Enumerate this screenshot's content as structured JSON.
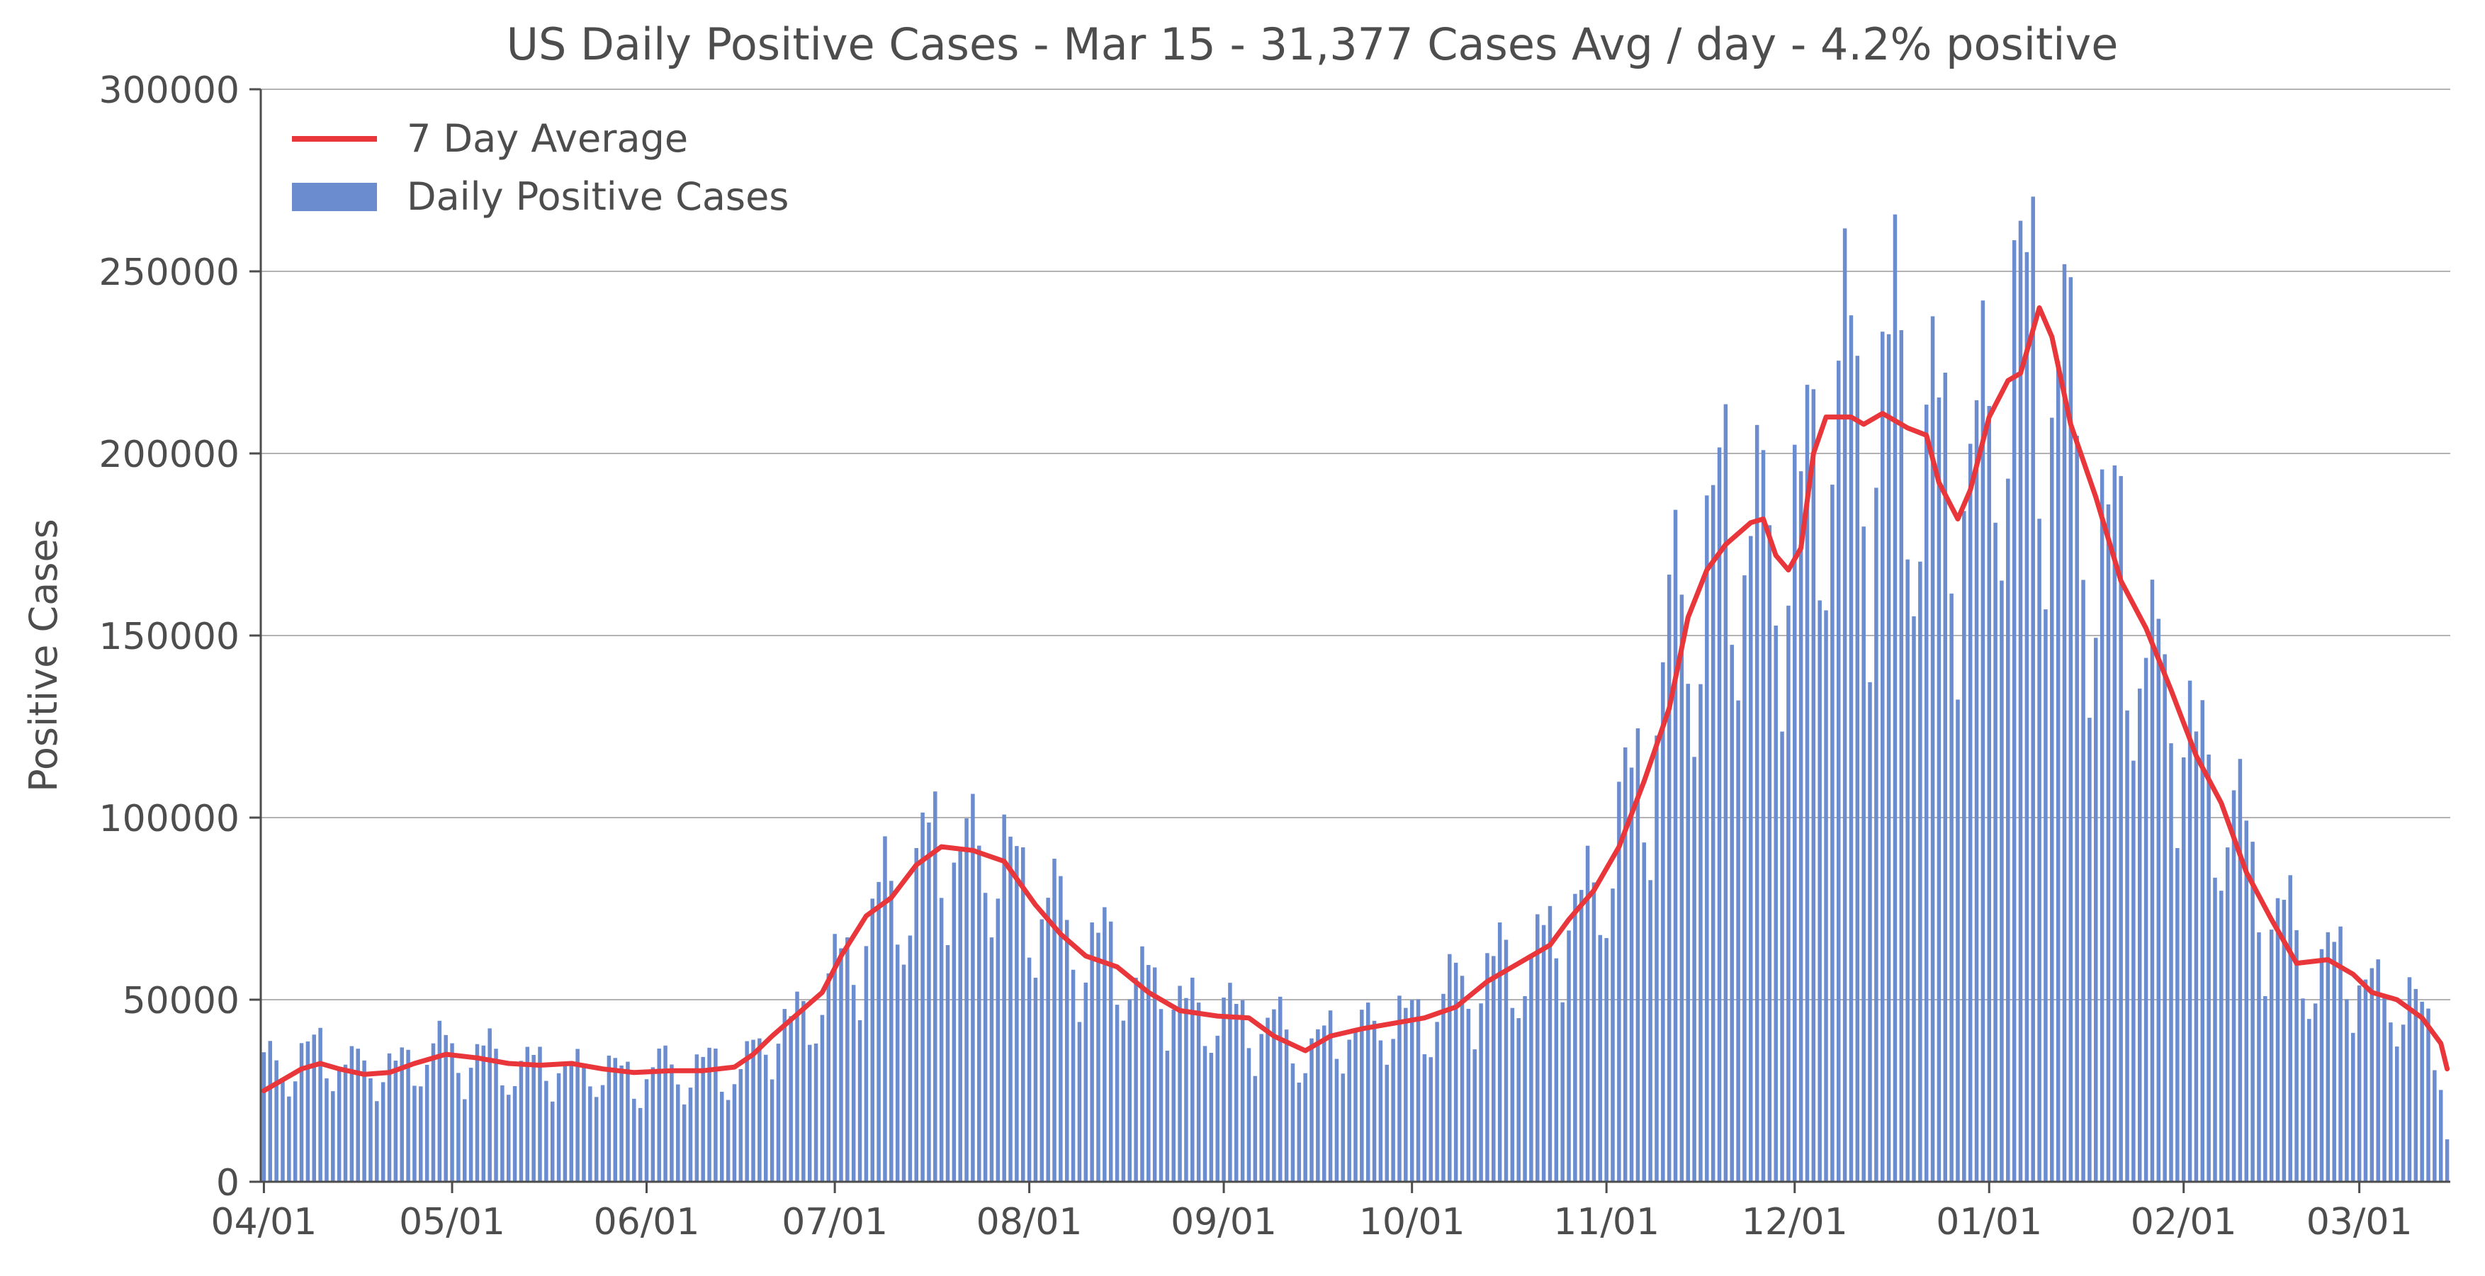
{
  "chart_data": {
    "type": "bar",
    "title": "US Daily Positive Cases - Mar 15 - 31,377 Cases Avg / day - 4.2% positive",
    "xlabel": "",
    "ylabel": "Positive Cases",
    "start_date": "2020-04-01",
    "end_date": "2021-03-15",
    "ylim": [
      0,
      300000
    ],
    "yticks": [
      "0",
      "50000",
      "100000",
      "150000",
      "200000",
      "250000",
      "300000"
    ],
    "xticks": [
      {
        "date": "2020-04-01",
        "label": "04/01"
      },
      {
        "date": "2020-05-01",
        "label": "05/01"
      },
      {
        "date": "2020-06-01",
        "label": "06/01"
      },
      {
        "date": "2020-07-01",
        "label": "07/01"
      },
      {
        "date": "2020-08-01",
        "label": "08/01"
      },
      {
        "date": "2020-09-01",
        "label": "09/01"
      },
      {
        "date": "2020-10-01",
        "label": "10/01"
      },
      {
        "date": "2020-11-01",
        "label": "11/01"
      },
      {
        "date": "2020-12-01",
        "label": "12/01"
      },
      {
        "date": "2021-01-01",
        "label": "01/01"
      },
      {
        "date": "2021-02-01",
        "label": "02/01"
      },
      {
        "date": "2021-03-01",
        "label": "03/01"
      }
    ],
    "grid": "horizontal",
    "legend_position": "top-left",
    "series": [
      {
        "name": "Daily Positive Cases",
        "type": "bar",
        "color": "#6b8ccf",
        "keypoints": [
          [
            "2020-04-01",
            30000
          ],
          [
            "2020-04-04",
            33000
          ],
          [
            "2020-04-10",
            35000
          ],
          [
            "2020-04-20",
            30000
          ],
          [
            "2020-04-25",
            34000
          ],
          [
            "2020-04-30",
            36000
          ],
          [
            "2020-05-05",
            34000
          ],
          [
            "2020-05-10",
            32000
          ],
          [
            "2020-05-20",
            31000
          ],
          [
            "2020-05-31",
            29000
          ],
          [
            "2020-06-05",
            31000
          ],
          [
            "2020-06-10",
            31000
          ],
          [
            "2020-06-15",
            30000
          ],
          [
            "2020-06-20",
            38000
          ],
          [
            "2020-06-25",
            45000
          ],
          [
            "2020-06-30",
            52000
          ],
          [
            "2020-07-05",
            68000
          ],
          [
            "2020-07-10",
            76000
          ],
          [
            "2020-07-15",
            88000
          ],
          [
            "2020-07-20",
            92000
          ],
          [
            "2020-07-25",
            90000
          ],
          [
            "2020-07-30",
            84000
          ],
          [
            "2020-08-05",
            72000
          ],
          [
            "2020-08-10",
            64000
          ],
          [
            "2020-08-15",
            60000
          ],
          [
            "2020-08-20",
            54000
          ],
          [
            "2020-08-25",
            49000
          ],
          [
            "2020-08-31",
            45000
          ],
          [
            "2020-09-05",
            45000
          ],
          [
            "2020-09-10",
            40000
          ],
          [
            "2020-09-15",
            36000
          ],
          [
            "2020-09-20",
            41000
          ],
          [
            "2020-09-25",
            43000
          ],
          [
            "2020-09-30",
            44000
          ],
          [
            "2020-10-05",
            47000
          ],
          [
            "2020-10-10",
            55000
          ],
          [
            "2020-10-15",
            57000
          ],
          [
            "2020-10-20",
            61000
          ],
          [
            "2020-10-25",
            70000
          ],
          [
            "2020-10-31",
            82000
          ],
          [
            "2020-11-05",
            105000
          ],
          [
            "2020-11-10",
            135000
          ],
          [
            "2020-11-15",
            165000
          ],
          [
            "2020-11-20",
            177000
          ],
          [
            "2020-11-25",
            182000
          ],
          [
            "2020-11-28",
            168000
          ],
          [
            "2020-12-01",
            175000
          ],
          [
            "2020-12-05",
            208000
          ],
          [
            "2020-12-10",
            210000
          ],
          [
            "2020-12-15",
            212000
          ],
          [
            "2020-12-20",
            206000
          ],
          [
            "2020-12-23",
            205000
          ],
          [
            "2020-12-26",
            183000
          ],
          [
            "2020-12-29",
            195000
          ],
          [
            "2021-01-01",
            210000
          ],
          [
            "2021-01-05",
            222000
          ],
          [
            "2021-01-08",
            240000
          ],
          [
            "2021-01-12",
            215000
          ],
          [
            "2021-01-15",
            195000
          ],
          [
            "2021-01-20",
            170000
          ],
          [
            "2021-01-25",
            150000
          ],
          [
            "2021-01-30",
            132000
          ],
          [
            "2021-02-05",
            110000
          ],
          [
            "2021-02-08",
            102000
          ],
          [
            "2021-02-12",
            85000
          ],
          [
            "2021-02-16",
            72000
          ],
          [
            "2021-02-20",
            60000
          ],
          [
            "2021-02-25",
            60000
          ],
          [
            "2021-03-01",
            56000
          ],
          [
            "2021-03-05",
            51000
          ],
          [
            "2021-03-10",
            47000
          ],
          [
            "2021-03-13",
            40000
          ],
          [
            "2021-03-15",
            31000
          ]
        ]
      },
      {
        "name": "7 Day Average",
        "type": "line",
        "color": "#e8363a",
        "points": [
          [
            "2020-04-01",
            25000
          ],
          [
            "2020-04-04",
            28000
          ],
          [
            "2020-04-07",
            31000
          ],
          [
            "2020-04-10",
            32500
          ],
          [
            "2020-04-13",
            31000
          ],
          [
            "2020-04-17",
            29500
          ],
          [
            "2020-04-21",
            30000
          ],
          [
            "2020-04-25",
            32500
          ],
          [
            "2020-04-30",
            35000
          ],
          [
            "2020-05-05",
            34000
          ],
          [
            "2020-05-10",
            32500
          ],
          [
            "2020-05-15",
            32000
          ],
          [
            "2020-05-20",
            32500
          ],
          [
            "2020-05-25",
            31000
          ],
          [
            "2020-05-30",
            30000
          ],
          [
            "2020-06-05",
            30500
          ],
          [
            "2020-06-10",
            30500
          ],
          [
            "2020-06-15",
            31500
          ],
          [
            "2020-06-18",
            35000
          ],
          [
            "2020-06-21",
            40000
          ],
          [
            "2020-06-25",
            46000
          ],
          [
            "2020-06-29",
            52000
          ],
          [
            "2020-07-02",
            62000
          ],
          [
            "2020-07-06",
            73000
          ],
          [
            "2020-07-10",
            78000
          ],
          [
            "2020-07-14",
            87000
          ],
          [
            "2020-07-18",
            92000
          ],
          [
            "2020-07-23",
            91000
          ],
          [
            "2020-07-28",
            88000
          ],
          [
            "2020-08-02",
            76000
          ],
          [
            "2020-08-06",
            68000
          ],
          [
            "2020-08-10",
            62000
          ],
          [
            "2020-08-15",
            59000
          ],
          [
            "2020-08-20",
            52000
          ],
          [
            "2020-08-25",
            47000
          ],
          [
            "2020-08-31",
            45500
          ],
          [
            "2020-09-05",
            45000
          ],
          [
            "2020-09-09",
            40000
          ],
          [
            "2020-09-14",
            36000
          ],
          [
            "2020-09-18",
            40000
          ],
          [
            "2020-09-23",
            42000
          ],
          [
            "2020-09-28",
            43500
          ],
          [
            "2020-10-03",
            45000
          ],
          [
            "2020-10-08",
            48000
          ],
          [
            "2020-10-13",
            55000
          ],
          [
            "2020-10-18",
            60000
          ],
          [
            "2020-10-23",
            65000
          ],
          [
            "2020-10-26",
            72000
          ],
          [
            "2020-10-30",
            80000
          ],
          [
            "2020-11-03",
            92000
          ],
          [
            "2020-11-07",
            110000
          ],
          [
            "2020-11-11",
            130000
          ],
          [
            "2020-11-14",
            155000
          ],
          [
            "2020-11-17",
            168000
          ],
          [
            "2020-11-20",
            175000
          ],
          [
            "2020-11-24",
            181000
          ],
          [
            "2020-11-26",
            182000
          ],
          [
            "2020-11-28",
            172000
          ],
          [
            "2020-11-30",
            168000
          ],
          [
            "2020-12-02",
            174000
          ],
          [
            "2020-12-04",
            200000
          ],
          [
            "2020-12-06",
            210000
          ],
          [
            "2020-12-10",
            210000
          ],
          [
            "2020-12-12",
            208000
          ],
          [
            "2020-12-15",
            211000
          ],
          [
            "2020-12-19",
            207000
          ],
          [
            "2020-12-22",
            205000
          ],
          [
            "2020-12-24",
            192000
          ],
          [
            "2020-12-27",
            182000
          ],
          [
            "2020-12-29",
            190000
          ],
          [
            "2021-01-01",
            210000
          ],
          [
            "2021-01-04",
            220000
          ],
          [
            "2021-01-06",
            222000
          ],
          [
            "2021-01-09",
            240000
          ],
          [
            "2021-01-11",
            232000
          ],
          [
            "2021-01-14",
            208000
          ],
          [
            "2021-01-18",
            188000
          ],
          [
            "2021-01-22",
            165000
          ],
          [
            "2021-01-26",
            152000
          ],
          [
            "2021-01-30",
            135000
          ],
          [
            "2021-02-03",
            117000
          ],
          [
            "2021-02-07",
            104000
          ],
          [
            "2021-02-11",
            85000
          ],
          [
            "2021-02-15",
            72000
          ],
          [
            "2021-02-19",
            60000
          ],
          [
            "2021-02-24",
            61000
          ],
          [
            "2021-02-28",
            57000
          ],
          [
            "2021-03-03",
            52000
          ],
          [
            "2021-03-07",
            50000
          ],
          [
            "2021-03-11",
            45000
          ],
          [
            "2021-03-14",
            38000
          ],
          [
            "2021-03-15",
            31000
          ]
        ]
      }
    ]
  }
}
